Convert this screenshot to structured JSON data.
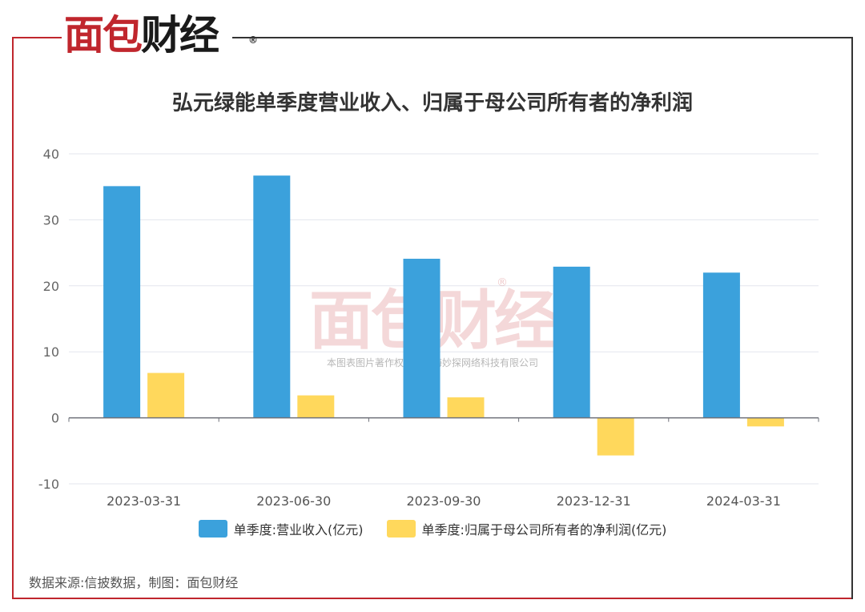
{
  "header": {
    "logo_part1": "面包",
    "logo_part2": "财经",
    "registered_mark": "®"
  },
  "watermark": {
    "text": "面包财经",
    "subtext": "本图表图片著作权属于上海妙探网络科技有限公司",
    "registered_mark": "®"
  },
  "footer": {
    "source": "数据来源:信披数据，制图：面包财经"
  },
  "colors": {
    "revenue": "#3ba1dc",
    "profit": "#ffd85c",
    "brand_red": "#c0262d"
  },
  "chart_data": {
    "type": "bar",
    "title": "弘元绿能单季度营业收入、归属于母公司所有者的净利润",
    "categories": [
      "2023-03-31",
      "2023-06-30",
      "2023-09-30",
      "2023-12-31",
      "2024-03-31"
    ],
    "series": [
      {
        "name": "单季度:营业收入(亿元)",
        "values": [
          35.1,
          36.7,
          24.1,
          22.9,
          22.0
        ]
      },
      {
        "name": "单季度:归属于母公司所有者的净利润(亿元)",
        "values": [
          6.8,
          3.4,
          3.1,
          -5.7,
          -1.3
        ]
      }
    ],
    "ylim": [
      -10,
      40
    ],
    "yticks": [
      40,
      30,
      20,
      10,
      0,
      -10
    ],
    "grid": true,
    "legend_position": "bottom"
  }
}
